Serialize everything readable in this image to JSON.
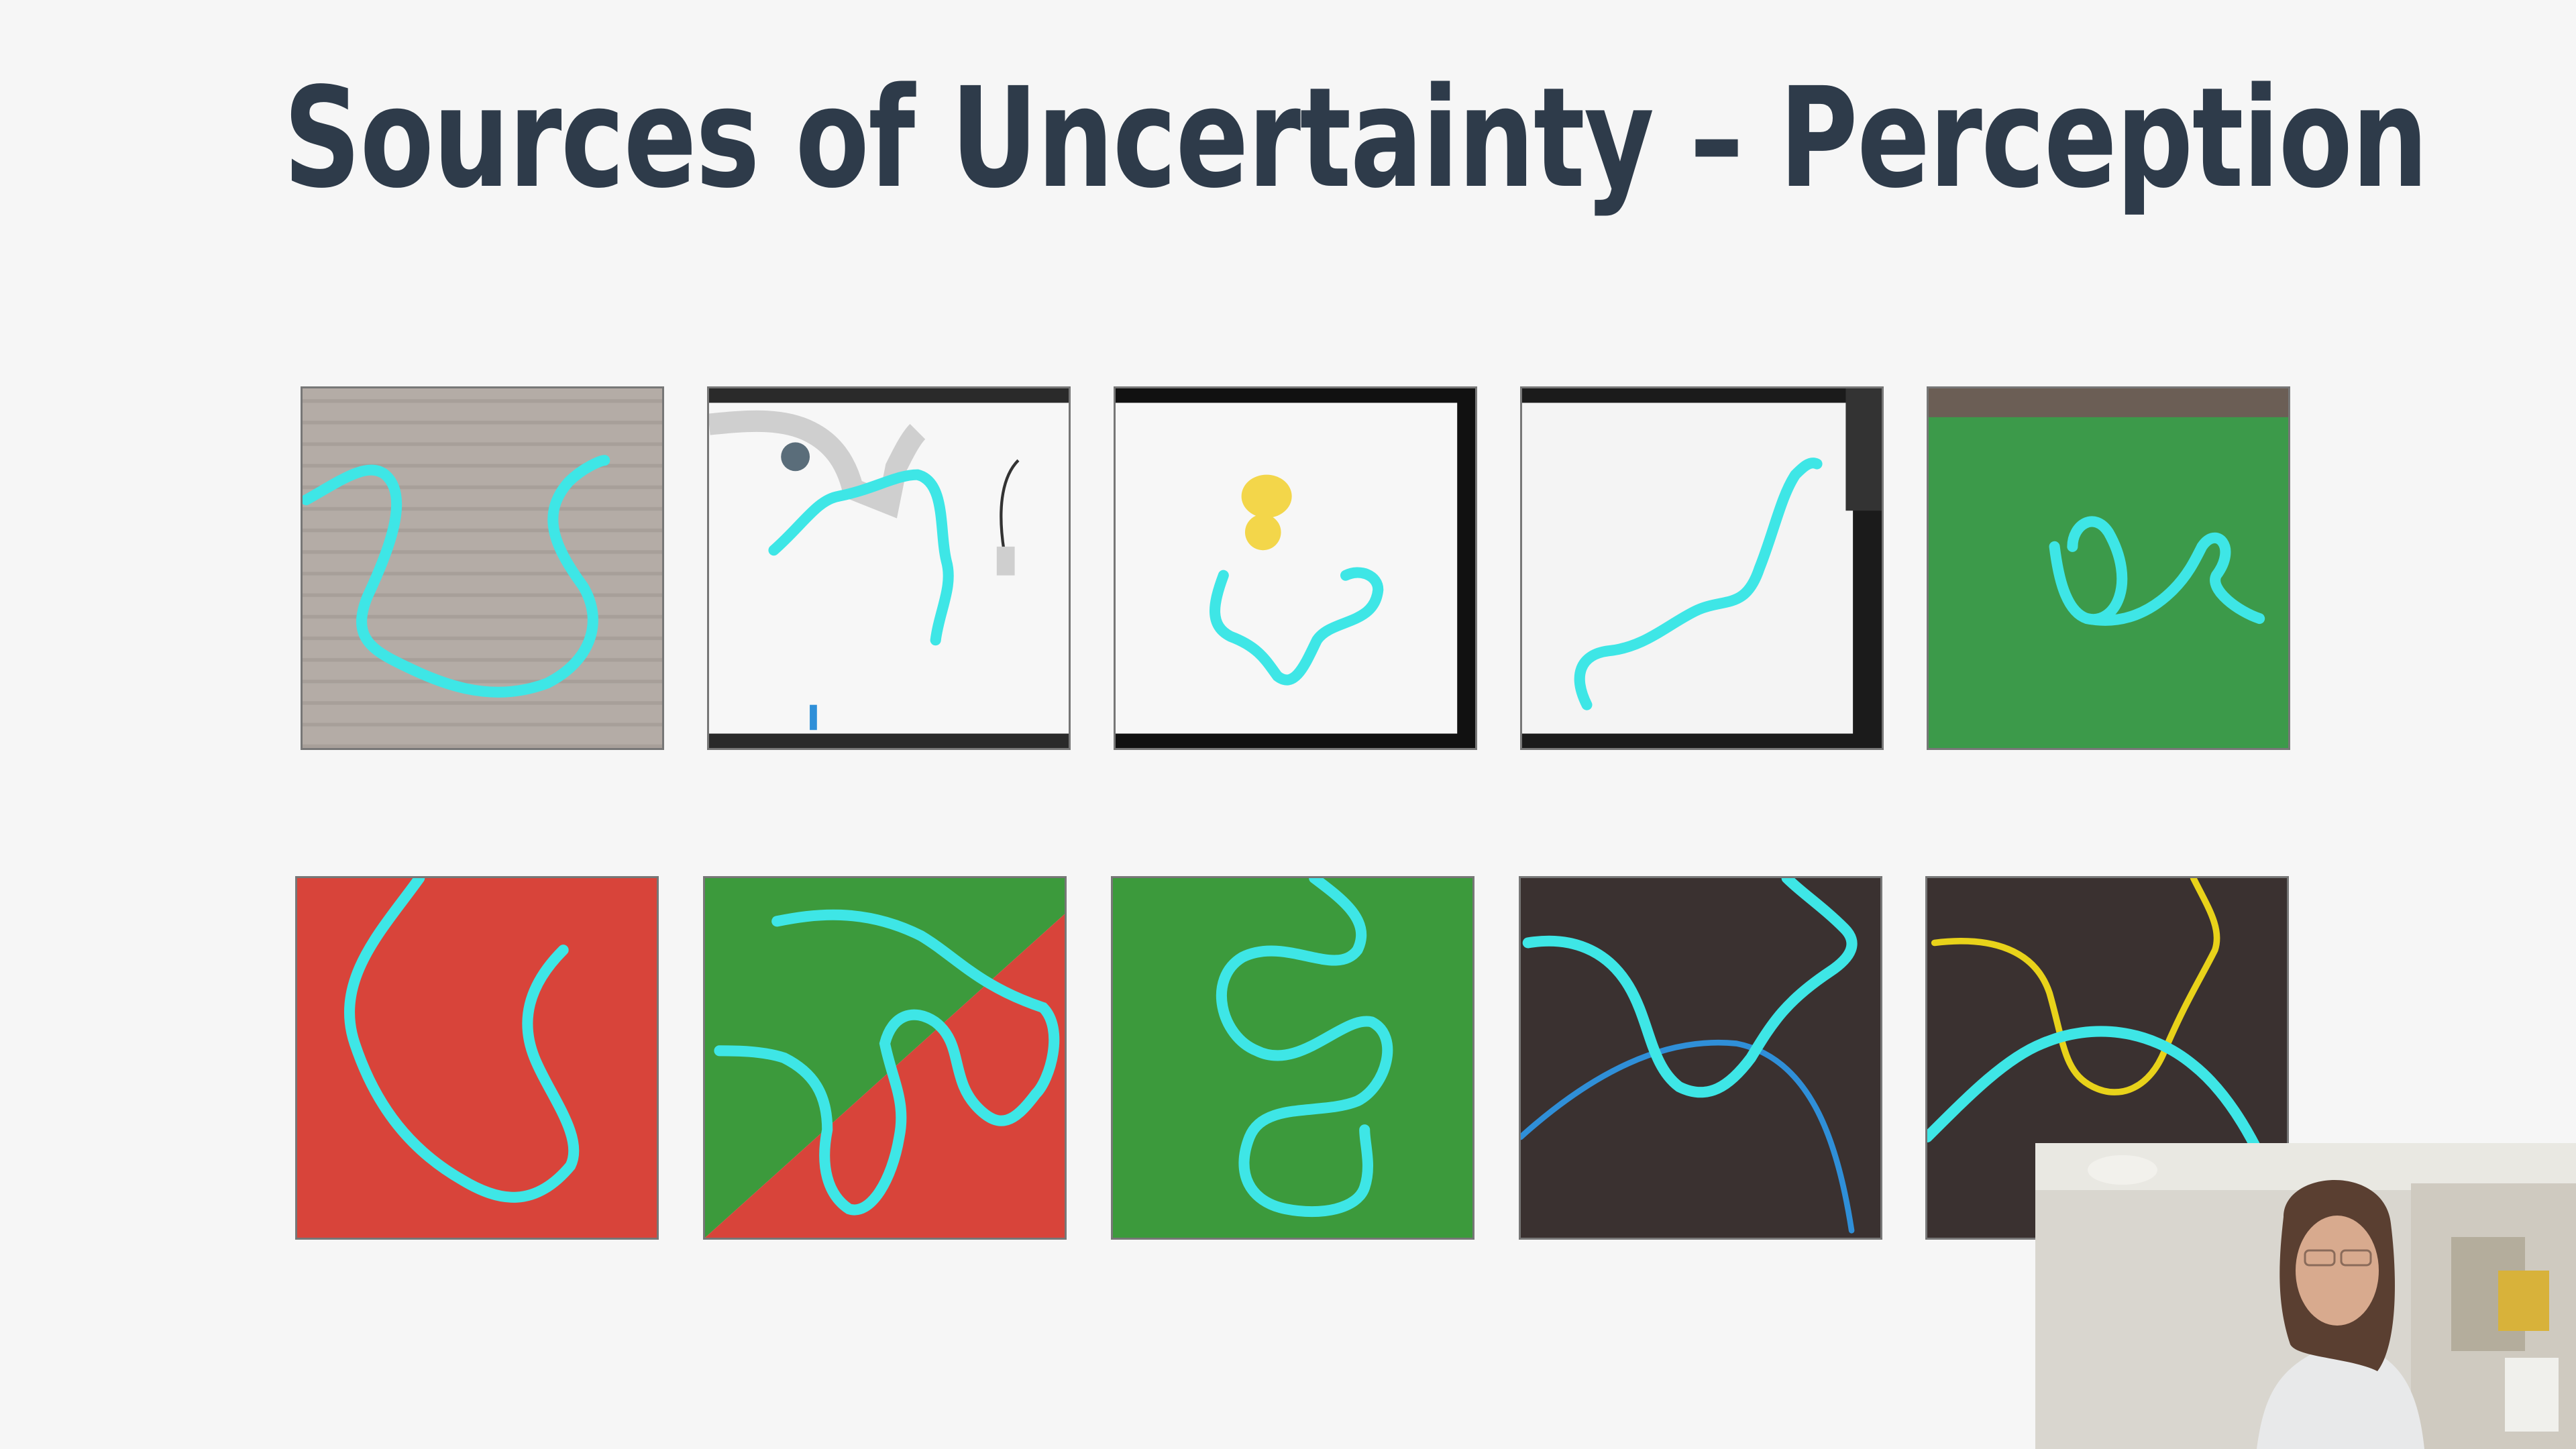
{
  "slide": {
    "title": "Sources of Uncertainty – Perception"
  },
  "thumbnails": [
    {
      "row": 1,
      "col": 1,
      "background": "wood-floor"
    },
    {
      "row": 1,
      "col": 2,
      "background": "white-table-with-robot-arm"
    },
    {
      "row": 1,
      "col": 3,
      "background": "white-table-with-plush-toy"
    },
    {
      "row": 1,
      "col": 4,
      "background": "white-table"
    },
    {
      "row": 1,
      "col": 5,
      "background": "green-cloth-table"
    },
    {
      "row": 2,
      "col": 1,
      "background": "red-cloth"
    },
    {
      "row": 2,
      "col": 2,
      "background": "green-red-cloth"
    },
    {
      "row": 2,
      "col": 3,
      "background": "green-cloth"
    },
    {
      "row": 2,
      "col": 4,
      "background": "dark-carpet"
    },
    {
      "row": 2,
      "col": 5,
      "background": "dark-carpet"
    }
  ],
  "colors": {
    "title": "#2e3b4a",
    "rope_highlight": "#3ee6e6",
    "yellow_rope": "#e8d21a",
    "blue_rope": "#2f8fd8"
  },
  "webcam": {
    "label": "presenter-video-feed"
  }
}
